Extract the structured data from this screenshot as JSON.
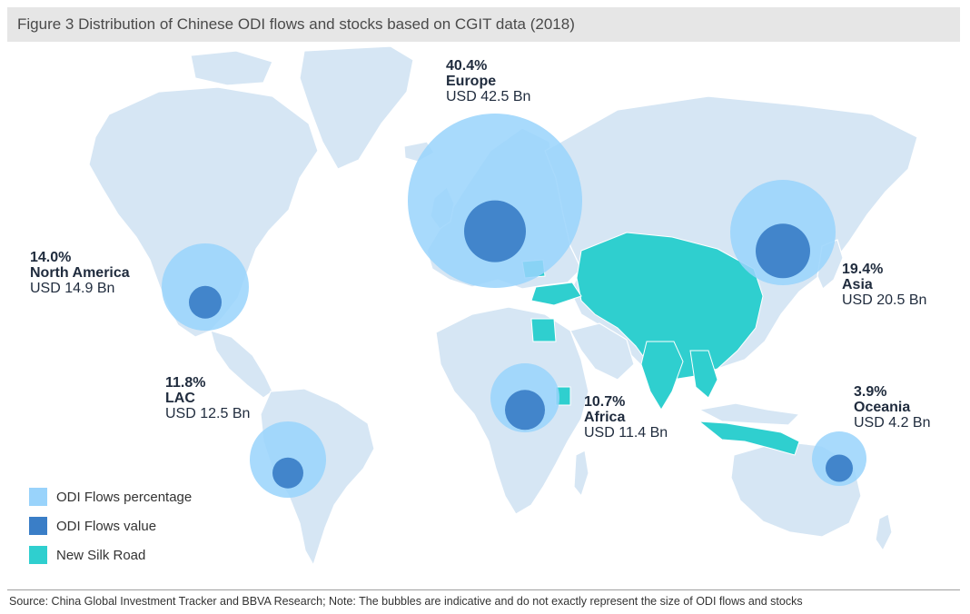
{
  "title": "Figure 3 Distribution of Chinese ODI flows and stocks based on CGIT data (2018)",
  "colors": {
    "land": "#d6e6f4",
    "silk_road": "#2fcfcf",
    "flows_percentage": "#99d3fb",
    "flows_value": "#3a7ec7",
    "title_bg": "#e6e6e6"
  },
  "regions": [
    {
      "id": "europe",
      "percent": "40.4%",
      "name": "Europe",
      "usd": "USD 42.5 Bn",
      "value": 42.5
    },
    {
      "id": "north-america",
      "percent": "14.0%",
      "name": "North America",
      "usd": "USD 14.9 Bn",
      "value": 14.9
    },
    {
      "id": "asia",
      "percent": "19.4%",
      "name": "Asia",
      "usd": "USD 20.5 Bn",
      "value": 20.5
    },
    {
      "id": "lac",
      "percent": "11.8%",
      "name": "LAC",
      "usd": "USD 12.5 Bn",
      "value": 12.5
    },
    {
      "id": "africa",
      "percent": "10.7%",
      "name": "Africa",
      "usd": "USD 11.4 Bn",
      "value": 11.4
    },
    {
      "id": "oceania",
      "percent": "3.9%",
      "name": "Oceania",
      "usd": "USD 4.2 Bn",
      "value": 4.2
    }
  ],
  "legend": [
    {
      "label": "ODI Flows percentage",
      "icon": "flows-percentage-swatch"
    },
    {
      "label": "ODI Flows value",
      "icon": "flows-value-swatch"
    },
    {
      "label": "New Silk Road",
      "icon": "silk-road-swatch"
    }
  ],
  "source": "Source: China Global Investment Tracker and BBVA Research; Note: The bubbles are indicative and do not exactly represent the size of ODI flows and stocks"
}
